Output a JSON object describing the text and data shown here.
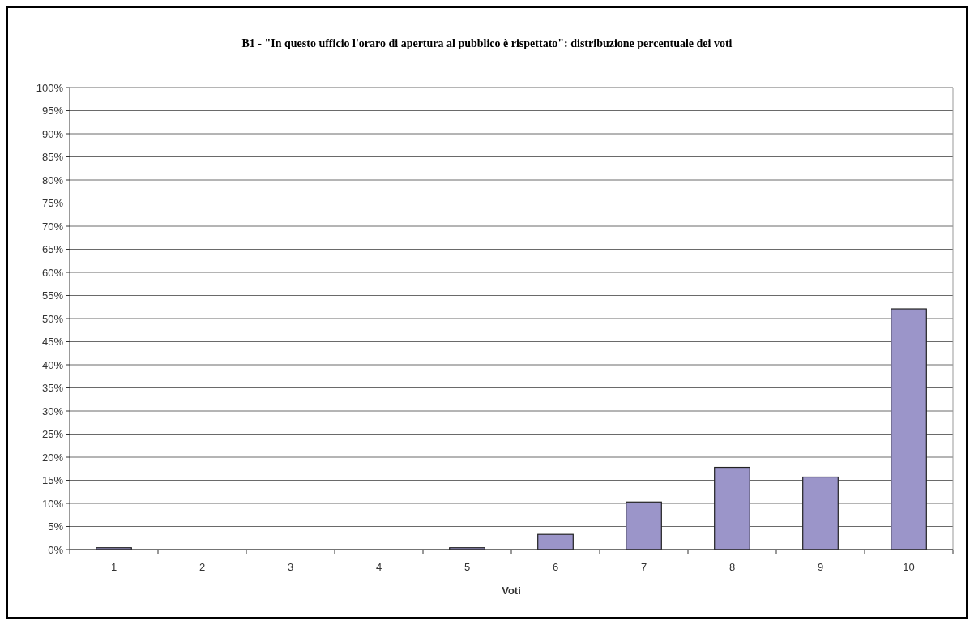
{
  "chart_data": {
    "type": "bar",
    "title": "B1 - \"In questo ufficio l'oraro di apertura al pubblico è rispettato\": distribuzione percentuale dei voti",
    "xlabel": "Voti",
    "categories": [
      "1",
      "2",
      "3",
      "4",
      "5",
      "6",
      "7",
      "8",
      "9",
      "10"
    ],
    "values": [
      0.4,
      0,
      0,
      0,
      0.4,
      3.3,
      10.3,
      17.8,
      15.7,
      52.1
    ],
    "color": "#9b95c9",
    "ylim": [
      0,
      100
    ],
    "yticks": [
      {
        "value": 0,
        "label": "0%"
      },
      {
        "value": 5,
        "label": "5%"
      },
      {
        "value": 10,
        "label": "10%"
      },
      {
        "value": 15,
        "label": "15%"
      },
      {
        "value": 20,
        "label": "20%"
      },
      {
        "value": 25,
        "label": "25%"
      },
      {
        "value": 30,
        "label": "30%"
      },
      {
        "value": 35,
        "label": "35%"
      },
      {
        "value": 40,
        "label": "40%"
      },
      {
        "value": 45,
        "label": "45%"
      },
      {
        "value": 50,
        "label": "50%"
      },
      {
        "value": 55,
        "label": "55%"
      },
      {
        "value": 60,
        "label": "60%"
      },
      {
        "value": 65,
        "label": "65%"
      },
      {
        "value": 70,
        "label": "70%"
      },
      {
        "value": 75,
        "label": "75%"
      },
      {
        "value": 80,
        "label": "80%"
      },
      {
        "value": 85,
        "label": "85%"
      },
      {
        "value": 90,
        "label": "90%"
      },
      {
        "value": 95,
        "label": "95%"
      },
      {
        "value": 100,
        "label": "100%"
      }
    ],
    "grid": "y"
  }
}
